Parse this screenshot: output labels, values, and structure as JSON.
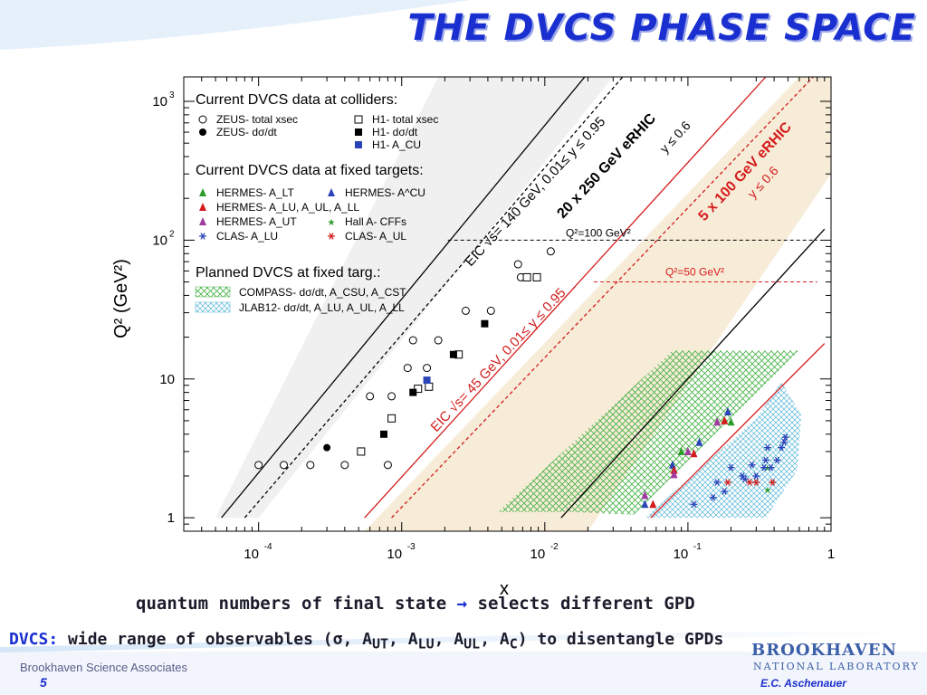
{
  "slide": {
    "title": "THE DVCS PHASE SPACE",
    "caption1_pre": "quantum numbers of final state",
    "caption1_post": "selects different GPD",
    "caption2_dvcs": "DVCS:",
    "caption2_rest": "wide range of observables (σ, A",
    "footer_left": "Brookhaven Science Associates",
    "page_number": "5",
    "logo_line1": "BROOKHAVEN",
    "logo_line2": "NATIONAL LABORATORY",
    "author": "E.C. Aschenauer",
    "arrow_icon": "right-arrow-icon"
  },
  "chart_data": {
    "type": "scatter",
    "xlabel": "x",
    "ylabel": "Q² (GeV²)",
    "xscale": "log",
    "yscale": "log",
    "xlim": [
      3e-05,
      1
    ],
    "ylim": [
      0.8,
      1500
    ],
    "xticks": [
      {
        "v": 0.0001,
        "b": "10",
        "e": "-4"
      },
      {
        "v": 0.001,
        "b": "10",
        "e": "-3"
      },
      {
        "v": 0.01,
        "b": "10",
        "e": "-2"
      },
      {
        "v": 0.1,
        "b": "10",
        "e": "-1"
      },
      {
        "v": 1,
        "b": "1",
        "e": ""
      }
    ],
    "yticks": [
      {
        "v": 1,
        "b": "1",
        "e": ""
      },
      {
        "v": 10,
        "b": "10",
        "e": ""
      },
      {
        "v": 100,
        "b": "10",
        "e": "2"
      },
      {
        "v": 1000,
        "b": "10",
        "e": "3"
      }
    ],
    "legend": {
      "colliders_header": "Current DVCS data at colliders:",
      "colliders": [
        "ZEUS- total xsec",
        "H1- total xsec",
        "ZEUS- dσ/dt",
        "H1- dσ/dt",
        "H1- A_CU"
      ],
      "fixed_header": "Current DVCS data at fixed targets:",
      "fixed": [
        "HERMES- A_LT",
        "HERMES- A^CU",
        "HERMES- A_LU, A_UL, A_LL",
        "HERMES- A_UT",
        "Hall A- CFFs",
        "CLAS- A_LU",
        "CLAS- A_UL"
      ],
      "planned_header": "Planned DVCS at fixed targ.:",
      "planned": [
        "COMPASS- dσ/dt, A_CSU, A_CST",
        "JLAB12- dσ/dt, A_LU, A_UL, A_LL"
      ]
    },
    "annotations": {
      "eic140": "EIC √s= 140 GeV, 0.01≤ y ≤ 0.95",
      "eic140_bold": "20 x 250 GeV eRHIC",
      "eic140_y": "y ≤ 0.6",
      "eic45": "EIC √s= 45 GeV, 0.01≤ y ≤ 0.95",
      "eic45_bold": "5 x 100 GeV eRHIC",
      "eic45_y": "y ≤ 0.6",
      "q2_100": "Q²=100 GeV²",
      "q2_50": "Q²=50 GeV²"
    },
    "q2_lines": [
      {
        "q2": 100,
        "xmin": 0.0021,
        "xmax": 0.8
      },
      {
        "q2": 50,
        "xmin": 0.022,
        "xmax": 0.8
      }
    ],
    "colors": {
      "eic140_band": "#f0f0f0",
      "eic45_band": "#f7ecd8",
      "compass": "#44b044",
      "jlab": "#58b6d8",
      "red": "#d41c1c",
      "blue": "#2b45b8",
      "green": "#2c9c2c",
      "purple": "#a03aa0"
    },
    "series": [
      {
        "name": "ZEUS- total xsec",
        "marker": "open-circle",
        "color": "#000000",
        "points": [
          [
            0.0001,
            2.4
          ],
          [
            0.00015,
            2.4
          ],
          [
            0.00023,
            2.4
          ],
          [
            0.0004,
            2.4
          ],
          [
            0.0008,
            2.4
          ],
          [
            0.0006,
            7.5
          ],
          [
            0.00085,
            7.5
          ],
          [
            0.0011,
            12
          ],
          [
            0.0015,
            12
          ],
          [
            0.0012,
            19
          ],
          [
            0.0018,
            19
          ],
          [
            0.0028,
            31
          ],
          [
            0.0042,
            31
          ],
          [
            0.0065,
            67
          ],
          [
            0.011,
            83
          ],
          [
            0.0068,
            54
          ]
        ]
      },
      {
        "name": "ZEUS- dσ/dt",
        "marker": "filled-circle",
        "color": "#000000",
        "points": [
          [
            0.0003,
            3.2
          ]
        ]
      },
      {
        "name": "H1- total xsec",
        "marker": "open-square",
        "color": "#000000",
        "points": [
          [
            0.00052,
            3.0
          ],
          [
            0.00085,
            5.2
          ],
          [
            0.0013,
            8.5
          ],
          [
            0.00155,
            8.8
          ],
          [
            0.0025,
            15
          ],
          [
            0.0075,
            54
          ],
          [
            0.0088,
            54
          ]
        ]
      },
      {
        "name": "H1- dσ/dt",
        "marker": "filled-square",
        "color": "#000000",
        "points": [
          [
            0.00075,
            4.0
          ],
          [
            0.0012,
            8.0
          ],
          [
            0.0023,
            15
          ],
          [
            0.0038,
            25
          ]
        ]
      },
      {
        "name": "H1- A_CU",
        "marker": "filled-square",
        "color": "#2b45b8",
        "points": [
          [
            0.0015,
            9.8
          ]
        ]
      },
      {
        "name": "HERMES- A_LT",
        "marker": "triangle",
        "color": "#2c9c2c",
        "points": [
          [
            0.09,
            3.0
          ],
          [
            0.2,
            4.9
          ]
        ]
      },
      {
        "name": "HERMES- A^CU",
        "marker": "triangle",
        "color": "#2b45b8",
        "points": [
          [
            0.05,
            1.25
          ],
          [
            0.078,
            2.4
          ],
          [
            0.12,
            3.5
          ],
          [
            0.19,
            5.8
          ]
        ]
      },
      {
        "name": "HERMES- A_LU, A_UL, A_LL",
        "marker": "triangle",
        "color": "#d41c1c",
        "points": [
          [
            0.057,
            1.25
          ],
          [
            0.08,
            2.2
          ],
          [
            0.11,
            2.9
          ],
          [
            0.18,
            5.0
          ]
        ]
      },
      {
        "name": "HERMES- A_UT",
        "marker": "triangle",
        "color": "#a03aa0",
        "points": [
          [
            0.05,
            1.45
          ],
          [
            0.08,
            2.05
          ],
          [
            0.1,
            3.0
          ],
          [
            0.16,
            4.9
          ]
        ]
      },
      {
        "name": "Hall A- CFFs",
        "marker": "star",
        "color": "#2c9c2c",
        "points": [
          [
            0.36,
            1.6
          ],
          [
            0.36,
            2.3
          ]
        ]
      },
      {
        "name": "CLAS- A_LU",
        "marker": "asterisk",
        "color": "#2b45b8",
        "points": [
          [
            0.11,
            1.25
          ],
          [
            0.15,
            1.4
          ],
          [
            0.18,
            1.55
          ],
          [
            0.16,
            1.8
          ],
          [
            0.2,
            2.3
          ],
          [
            0.24,
            2.0
          ],
          [
            0.25,
            1.9
          ],
          [
            0.28,
            2.4
          ],
          [
            0.3,
            2.0
          ],
          [
            0.34,
            2.3
          ],
          [
            0.35,
            2.6
          ],
          [
            0.36,
            3.2
          ],
          [
            0.38,
            2.3
          ],
          [
            0.42,
            2.6
          ],
          [
            0.45,
            3.2
          ],
          [
            0.47,
            3.5
          ],
          [
            0.48,
            3.8
          ]
        ]
      },
      {
        "name": "CLAS- A_UL",
        "marker": "asterisk",
        "color": "#d41c1c",
        "points": [
          [
            0.19,
            1.8
          ],
          [
            0.27,
            1.8
          ],
          [
            0.3,
            1.8
          ],
          [
            0.39,
            1.8
          ]
        ]
      }
    ]
  }
}
